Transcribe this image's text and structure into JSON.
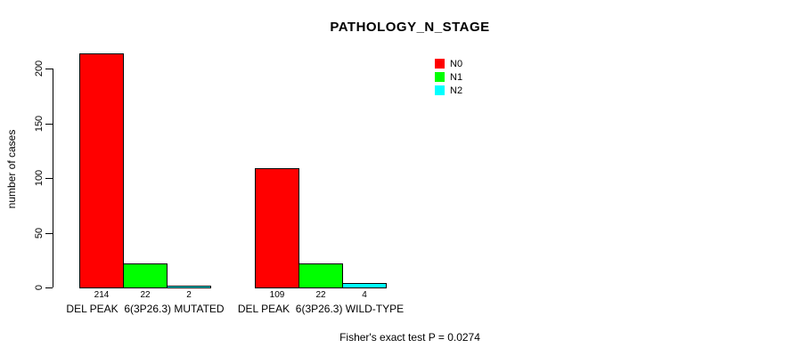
{
  "title": "PATHOLOGY_N_STAGE",
  "y_axis_title": "number of cases",
  "footnote": "Fisher's exact test P = 0.0274",
  "chart_data": {
    "type": "bar",
    "title": "PATHOLOGY_N_STAGE",
    "xlabel": "",
    "ylabel": "number of cases",
    "categories": [
      "DEL PEAK  6(3P26.3) MUTATED",
      "DEL PEAK  6(3P26.3) WILD-TYPE"
    ],
    "series": [
      {
        "name": "N0",
        "color": "#FF0000",
        "values": [
          214,
          109
        ]
      },
      {
        "name": "N1",
        "color": "#00FF00",
        "values": [
          22,
          22
        ]
      },
      {
        "name": "N2",
        "color": "#00FFFF",
        "values": [
          2,
          4
        ]
      }
    ],
    "bar_value_labels": [
      [
        "214",
        "22",
        "2"
      ],
      [
        "109",
        "22",
        "4"
      ]
    ],
    "yticks": [
      0,
      50,
      100,
      150,
      200
    ],
    "ylim": [
      0,
      214
    ],
    "grid": false,
    "legend_position": "top-right",
    "annotation": "Fisher's exact test P = 0.0274"
  },
  "legend": {
    "entries": [
      {
        "label": "N0",
        "color": "#FF0000"
      },
      {
        "label": "N1",
        "color": "#00FF00"
      },
      {
        "label": "N2",
        "color": "#00FFFF"
      }
    ]
  }
}
